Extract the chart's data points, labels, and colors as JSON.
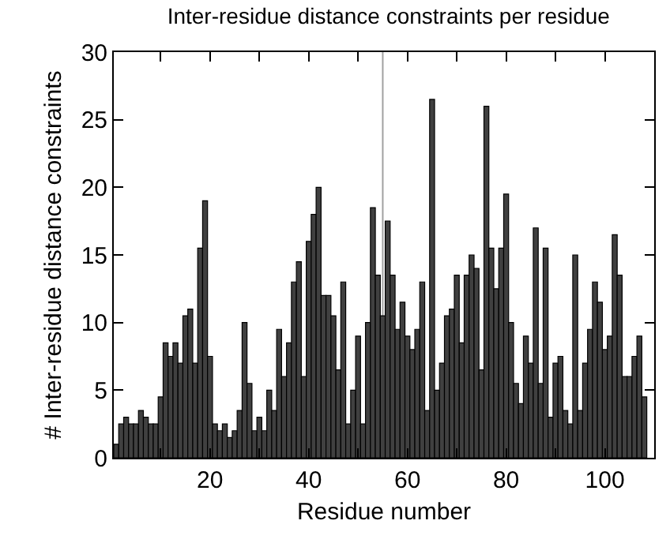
{
  "chart_data": {
    "type": "bar",
    "title": "Inter-residue distance constraints per residue",
    "xlabel": "Residue number",
    "ylabel": "# Inter-residue distance constraints",
    "x": [
      1,
      2,
      3,
      4,
      5,
      6,
      7,
      8,
      9,
      10,
      11,
      12,
      13,
      14,
      15,
      16,
      17,
      18,
      19,
      20,
      21,
      22,
      23,
      24,
      25,
      26,
      27,
      28,
      29,
      30,
      31,
      32,
      33,
      34,
      35,
      36,
      37,
      38,
      39,
      40,
      41,
      42,
      43,
      44,
      45,
      46,
      47,
      48,
      49,
      50,
      51,
      52,
      53,
      54,
      55,
      56,
      57,
      58,
      59,
      60,
      61,
      62,
      63,
      64,
      65,
      66,
      67,
      68,
      69,
      70,
      71,
      72,
      73,
      74,
      75,
      76,
      77,
      78,
      79,
      80,
      81,
      82,
      83,
      84,
      85,
      86,
      87,
      88,
      89,
      90,
      91,
      92,
      93,
      94,
      95,
      96,
      97,
      98,
      99,
      100,
      101,
      102,
      103,
      104,
      105,
      106,
      107,
      108
    ],
    "values": [
      1,
      2.5,
      3,
      2.5,
      2.5,
      3.5,
      3,
      2.5,
      2.5,
      4.5,
      8.5,
      7.5,
      8.5,
      7,
      10.5,
      11,
      7,
      15.5,
      19,
      7.5,
      2.5,
      2,
      2.5,
      1.5,
      2,
      3.5,
      10,
      5.5,
      2,
      3,
      2,
      5,
      3.5,
      9.5,
      6,
      8.5,
      13,
      14.5,
      6,
      16,
      18,
      20,
      12,
      12,
      10.5,
      6.5,
      13,
      2.5,
      5,
      9,
      2.5,
      10,
      18.5,
      13.5,
      10.5,
      17.5,
      13.5,
      9.5,
      11.5,
      9,
      8,
      9.5,
      13,
      3.5,
      26.5,
      5,
      7,
      10.5,
      11,
      13.5,
      8.5,
      13.5,
      15,
      14,
      6.5,
      26,
      15.5,
      12.5,
      15.5,
      19.5,
      10,
      5.5,
      4,
      9,
      7,
      17,
      5.5,
      15.5,
      3,
      7,
      7.5,
      3.5,
      2.5,
      15,
      3.5,
      7,
      9.5,
      13,
      11.5,
      8,
      9,
      16.5,
      13.5,
      6,
      6,
      7.5,
      9,
      4.5
    ],
    "color": "#404040",
    "xlim": [
      0.5,
      110
    ],
    "xticks": [
      {
        "value": 10,
        "label": null
      },
      20,
      {
        "value": 30,
        "label": null
      },
      40,
      {
        "value": 50,
        "label": null
      },
      60,
      {
        "value": 70,
        "label": null
      },
      80,
      {
        "value": 90,
        "label": null
      },
      100
    ],
    "ylim": [
      0,
      30
    ],
    "yticks": [
      0,
      5,
      10,
      15,
      20,
      25,
      30
    ],
    "ref_lines": [
      {
        "axis": "x",
        "value": 55,
        "label": null,
        "color": "#a0a0a0"
      }
    ]
  }
}
